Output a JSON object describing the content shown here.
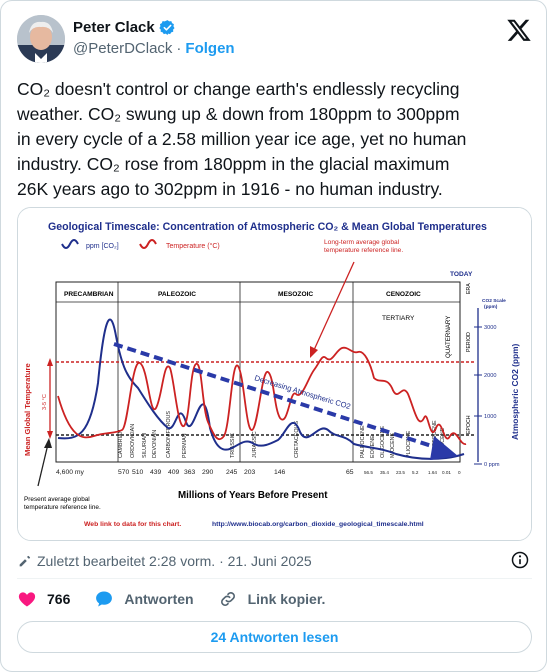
{
  "author": {
    "name": "Peter Clack",
    "handle": "@PeterDClack",
    "separator": "·",
    "follow_label": "Folgen"
  },
  "tweet": {
    "text": "CO₂ doesn't control or change earth's endlessly recycling\nweather. CO₂ swung up & down from 180ppm to 300ppm\nin every cycle of a 2.58 million year ice age, yet no human\nindustry. CO₂ rose from 180ppm in the glacial maximum\n26K years ago to 302ppm in 1916 - no human industry."
  },
  "chart": {
    "title": "Geological Timescale: Concentration of Atmospheric CO₂ & Mean Global Temperatures",
    "legend_co2": "ppm [CO₂]",
    "legend_temp": "Temperature (°C)",
    "annotation_top": "Long-term average global\ntemperature reference line.",
    "annotation_decreasing": "Decreasing Atmospheric CO2",
    "annotation_bottom": "Present average global\ntemperature reference line.",
    "today_label": "TODAY",
    "eras": [
      "PRECAMBRIAN",
      "PALEOZOIC",
      "MESOZOIC",
      "CENOZOIC"
    ],
    "tertiary_label": "TERTIARY",
    "side_labels": [
      "ERA",
      "PERIOD",
      "EPOCH"
    ],
    "periods": [
      "CAMBRIAN",
      "ORDOVICIAN",
      "SILURIAN",
      "DEVONIAN",
      "CARBONIFEROUS",
      "PERMIAN",
      "TRIASSIC",
      "JURASSIC",
      "CRETACEOUS",
      "PALEOCENE",
      "EOCENE",
      "OLIGOCENE",
      "MIOCENE",
      "PLIOCENE",
      "PLEISTOCENE",
      "HOLOCENE",
      "QUATERNARY"
    ],
    "x_ticks": [
      "4,600 my",
      "570",
      "510",
      "439",
      "409",
      "363",
      "290",
      "245",
      "203",
      "146",
      "65"
    ],
    "x_ticks_small": [
      "56.5",
      "35.4",
      "23.5",
      "5.2",
      "1.64",
      "0.01",
      "0"
    ],
    "xlabel": "Millions of Years Before Present",
    "ylabel_left": "Mean Global Temperature",
    "temp_range_label": "3-5 °C",
    "ylabel_right": "Atmospheric CO2 (ppm)",
    "co2_scale_label": "CO2 Scale\n(ppm)",
    "co2_ticks": [
      "3000",
      "2000",
      "1000",
      "0 ppm"
    ],
    "footer_label": "Web link to data for this chart.",
    "footer_url": "http://www.biocab.org/carbon_dioxide_geological_timescale.html"
  },
  "meta": {
    "edited": "Zuletzt bearbeitet 2:28 vorm. · 21. Juni 2025"
  },
  "actions": {
    "like_count": "766",
    "reply_label": "Antworten",
    "copy_link_label": "Link kopier."
  },
  "replies_button_label": "24 Antworten lesen",
  "colors": {
    "accent": "#1d9bf0",
    "like": "#f91880",
    "chart_co2": "#1f2f8c",
    "chart_temp": "#cc2222",
    "chart_trend": "#2a3aa8"
  }
}
